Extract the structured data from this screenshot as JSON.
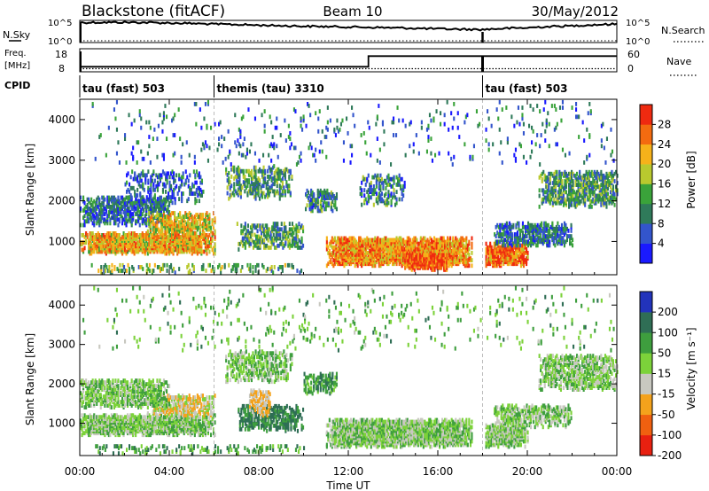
{
  "header": {
    "station": "Blackstone (fitACF)",
    "beam": "Beam 10",
    "date": "30/May/2012"
  },
  "side_labels": {
    "nsky": "N.Sky",
    "nsearch": "N.Search",
    "freq": "Freq.",
    "freq_unit": "[MHz]",
    "nave": "Nave",
    "cpid": "CPID"
  },
  "noise_axis": {
    "left_ticks": [
      "10^5",
      "10^0"
    ],
    "right_ticks": [
      "10^5",
      "10^0"
    ]
  },
  "freq_axis": {
    "left_ticks": [
      "18",
      "8"
    ],
    "right_ticks": [
      "60",
      "0"
    ],
    "ylim_left": [
      8,
      18
    ],
    "ylim_right": [
      0,
      60
    ]
  },
  "cpid_segments": [
    {
      "label": "tau (fast) 503",
      "start_hour": 0,
      "end_hour": 6
    },
    {
      "label": "themis (tau) 3310",
      "start_hour": 6,
      "end_hour": 18
    },
    {
      "label": "tau (fast) 503",
      "start_hour": 18,
      "end_hour": 24
    }
  ],
  "x_axis": {
    "label": "Time UT",
    "ticks": [
      "00:00",
      "04:00",
      "08:00",
      "12:00",
      "16:00",
      "20:00",
      "00:00"
    ],
    "range_hours": [
      0,
      24
    ]
  },
  "y_axis": {
    "label": "Slant Range [km]",
    "ticks": [
      "1000",
      "2000",
      "3000",
      "4000"
    ],
    "range_km": [
      180,
      4500
    ]
  },
  "colorbars": {
    "power": {
      "label": "Power [dB]",
      "ticks": [
        "4",
        "8",
        "12",
        "16",
        "20",
        "24",
        "28"
      ],
      "colors": [
        "#1a1aff",
        "#3355cc",
        "#2f7a5a",
        "#3aa33a",
        "#b9c92e",
        "#f6b21a",
        "#f36b10",
        "#ef2a10"
      ]
    },
    "velocity": {
      "label": "Velocity [m s⁻¹]",
      "ticks": [
        "200",
        "100",
        "50",
        "15",
        "-15",
        "-50",
        "-100",
        "-200"
      ],
      "colors": [
        "#2233bb",
        "#2f6e55",
        "#3e9e3e",
        "#7cd23a",
        "#c8c8c0",
        "#f4a21c",
        "#f06010",
        "#e82010"
      ]
    }
  },
  "chart_data": [
    {
      "type": "line",
      "title": "Blackstone (fitACF)",
      "series": [
        {
          "name": "N.Sky",
          "x": [
            0,
            2,
            4,
            6,
            8,
            10,
            12,
            14,
            16,
            18,
            20,
            22,
            24
          ],
          "values": [
            80000.0,
            90000.0,
            60000.0,
            30000.0,
            15000.0,
            8000.0,
            5000.0,
            3000.0,
            1500.0,
            1000.0,
            3000.0,
            10000.0,
            30000.0
          ]
        },
        {
          "name": "N.Search",
          "x": [
            0,
            24
          ],
          "values": [
            1,
            1
          ]
        }
      ],
      "ylim": [
        1,
        100000
      ]
    },
    {
      "type": "line",
      "series": [
        {
          "name": "Freq.",
          "x": [
            0,
            12.9,
            12.9,
            24
          ],
          "values": [
            10.2,
            10.2,
            14.8,
            14.8
          ]
        },
        {
          "name": "Nave",
          "x": [
            0,
            24
          ],
          "values": [
            8,
            8
          ]
        }
      ],
      "xlim": [
        0,
        24
      ]
    },
    {
      "type": "heatmap",
      "title": "Power [dB]",
      "xlabel": "Time UT",
      "ylabel": "Slant Range [km]",
      "xlim": [
        0,
        24
      ],
      "ylim": [
        180,
        4500
      ],
      "clim": [
        0,
        30
      ],
      "blobs": [
        {
          "t0": 0.0,
          "t1": 6.0,
          "r0": 650,
          "r1": 1150,
          "p": 22,
          "density": 0.85
        },
        {
          "t0": 0.0,
          "t1": 4.0,
          "r0": 1350,
          "r1": 2050,
          "p": 8,
          "density": 0.55
        },
        {
          "t0": 3.0,
          "t1": 6.0,
          "r0": 1150,
          "r1": 1650,
          "p": 20,
          "density": 0.6
        },
        {
          "t0": 2.0,
          "t1": 5.5,
          "r0": 1900,
          "r1": 2700,
          "p": 7,
          "density": 0.25
        },
        {
          "t0": 6.5,
          "t1": 9.5,
          "r0": 2000,
          "r1": 2800,
          "p": 12,
          "density": 0.35
        },
        {
          "t0": 7.0,
          "t1": 10.0,
          "r0": 750,
          "r1": 1400,
          "p": 12,
          "density": 0.45
        },
        {
          "t0": 10.0,
          "t1": 11.5,
          "r0": 1700,
          "r1": 2200,
          "p": 10,
          "density": 0.45
        },
        {
          "t0": 11.0,
          "t1": 17.5,
          "r0": 350,
          "r1": 1050,
          "p": 24,
          "density": 0.85
        },
        {
          "t0": 14.5,
          "t1": 16.5,
          "r0": 250,
          "r1": 650,
          "p": 28,
          "density": 0.8
        },
        {
          "t0": 12.5,
          "t1": 14.5,
          "r0": 1850,
          "r1": 2600,
          "p": 10,
          "density": 0.35
        },
        {
          "t0": 18.0,
          "t1": 20.0,
          "r0": 350,
          "r1": 900,
          "p": 26,
          "density": 0.8
        },
        {
          "t0": 18.5,
          "t1": 22.0,
          "r0": 850,
          "r1": 1400,
          "p": 9,
          "density": 0.55
        },
        {
          "t0": 20.5,
          "t1": 24.0,
          "r0": 1800,
          "r1": 2700,
          "p": 12,
          "density": 0.5
        },
        {
          "t0": 0.5,
          "t1": 10.0,
          "r0": 180,
          "r1": 400,
          "p": 14,
          "density": 0.2
        },
        {
          "t0": 0.0,
          "t1": 24.0,
          "r0": 2800,
          "r1": 4400,
          "p": 8,
          "density": 0.03
        }
      ]
    },
    {
      "type": "heatmap",
      "title": "Velocity [m s⁻¹]",
      "xlabel": "Time UT",
      "ylabel": "Slant Range [km]",
      "xlim": [
        0,
        24
      ],
      "ylim": [
        180,
        4500
      ],
      "clim": [
        -200,
        200
      ],
      "blobs": [
        {
          "t0": 0.0,
          "t1": 6.0,
          "r0": 650,
          "r1": 1150,
          "v": 0,
          "density": 0.85
        },
        {
          "t0": 3.0,
          "t1": 6.0,
          "r0": 1150,
          "r1": 1650,
          "v": -40,
          "density": 0.6
        },
        {
          "t0": 0.0,
          "t1": 4.0,
          "r0": 1350,
          "r1": 2050,
          "v": 5,
          "density": 0.55
        },
        {
          "t0": 6.5,
          "t1": 9.5,
          "r0": 2000,
          "r1": 2800,
          "v": 5,
          "density": 0.35
        },
        {
          "t0": 7.0,
          "t1": 10.0,
          "r0": 750,
          "r1": 1400,
          "v": 60,
          "density": 0.45
        },
        {
          "t0": 7.5,
          "t1": 8.5,
          "r0": 1100,
          "r1": 1800,
          "v": -60,
          "density": 0.5
        },
        {
          "t0": 10.0,
          "t1": 11.5,
          "r0": 1700,
          "r1": 2200,
          "v": 40,
          "density": 0.45
        },
        {
          "t0": 11.0,
          "t1": 17.5,
          "r0": 350,
          "r1": 1050,
          "v": 0,
          "density": 0.85
        },
        {
          "t0": 18.0,
          "t1": 20.0,
          "r0": 350,
          "r1": 900,
          "v": 0,
          "density": 0.8
        },
        {
          "t0": 18.5,
          "t1": 22.0,
          "r0": 850,
          "r1": 1400,
          "v": 0,
          "density": 0.55
        },
        {
          "t0": 20.5,
          "t1": 24.0,
          "r0": 1800,
          "r1": 2700,
          "v": 0,
          "density": 0.5
        },
        {
          "t0": 0.5,
          "t1": 10.0,
          "r0": 180,
          "r1": 400,
          "v": 30,
          "density": 0.2
        },
        {
          "t0": 0.0,
          "t1": 24.0,
          "r0": 2800,
          "r1": 4400,
          "v": 20,
          "density": 0.03
        }
      ]
    }
  ]
}
